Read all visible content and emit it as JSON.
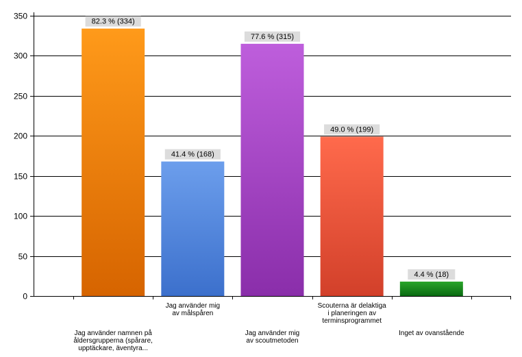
{
  "chart_data": {
    "type": "bar",
    "title": "",
    "xlabel": "",
    "ylabel": "",
    "ylim": [
      0,
      350
    ],
    "yticks": [
      0,
      50,
      100,
      150,
      200,
      250,
      300,
      350
    ],
    "grid": true,
    "legend": "none",
    "categories": [
      "Jag använder namnen på åldersgrupperna (spårare, upptäckare, äventyra...",
      "Jag använder mig av målspåren",
      "Jag använder mig av scoutmetoden",
      "Scouterna är delaktiga i planeringen av terminsprogrammet",
      "Inget av ovanstående"
    ],
    "category_lines": [
      [
        "Jag använder namnen på",
        "åldersgrupperna (spårare,",
        "upptäckare, äventyra..."
      ],
      [
        "Jag använder mig",
        "av målspåren"
      ],
      [
        "Jag använder mig",
        "av scoutmetoden"
      ],
      [
        "Scouterna är delaktiga",
        "i planeringen av",
        "terminsprogrammet"
      ],
      [
        "Inget av ovanstående"
      ]
    ],
    "values": [
      334,
      168,
      315,
      199,
      18
    ],
    "data_labels": [
      "82.3 % (334)",
      "41.4 % (168)",
      "77.6 % (315)",
      "49.0 % (199)",
      "4.4 % (18)"
    ],
    "colors": [
      [
        "#FF9A1A",
        "#D66400"
      ],
      [
        "#6C9EEC",
        "#3C70CC"
      ],
      [
        "#BE5EDC",
        "#8A2EAA"
      ],
      [
        "#FF6A4C",
        "#D2402A"
      ],
      [
        "#2AA52A",
        "#0A6A12"
      ]
    ]
  }
}
